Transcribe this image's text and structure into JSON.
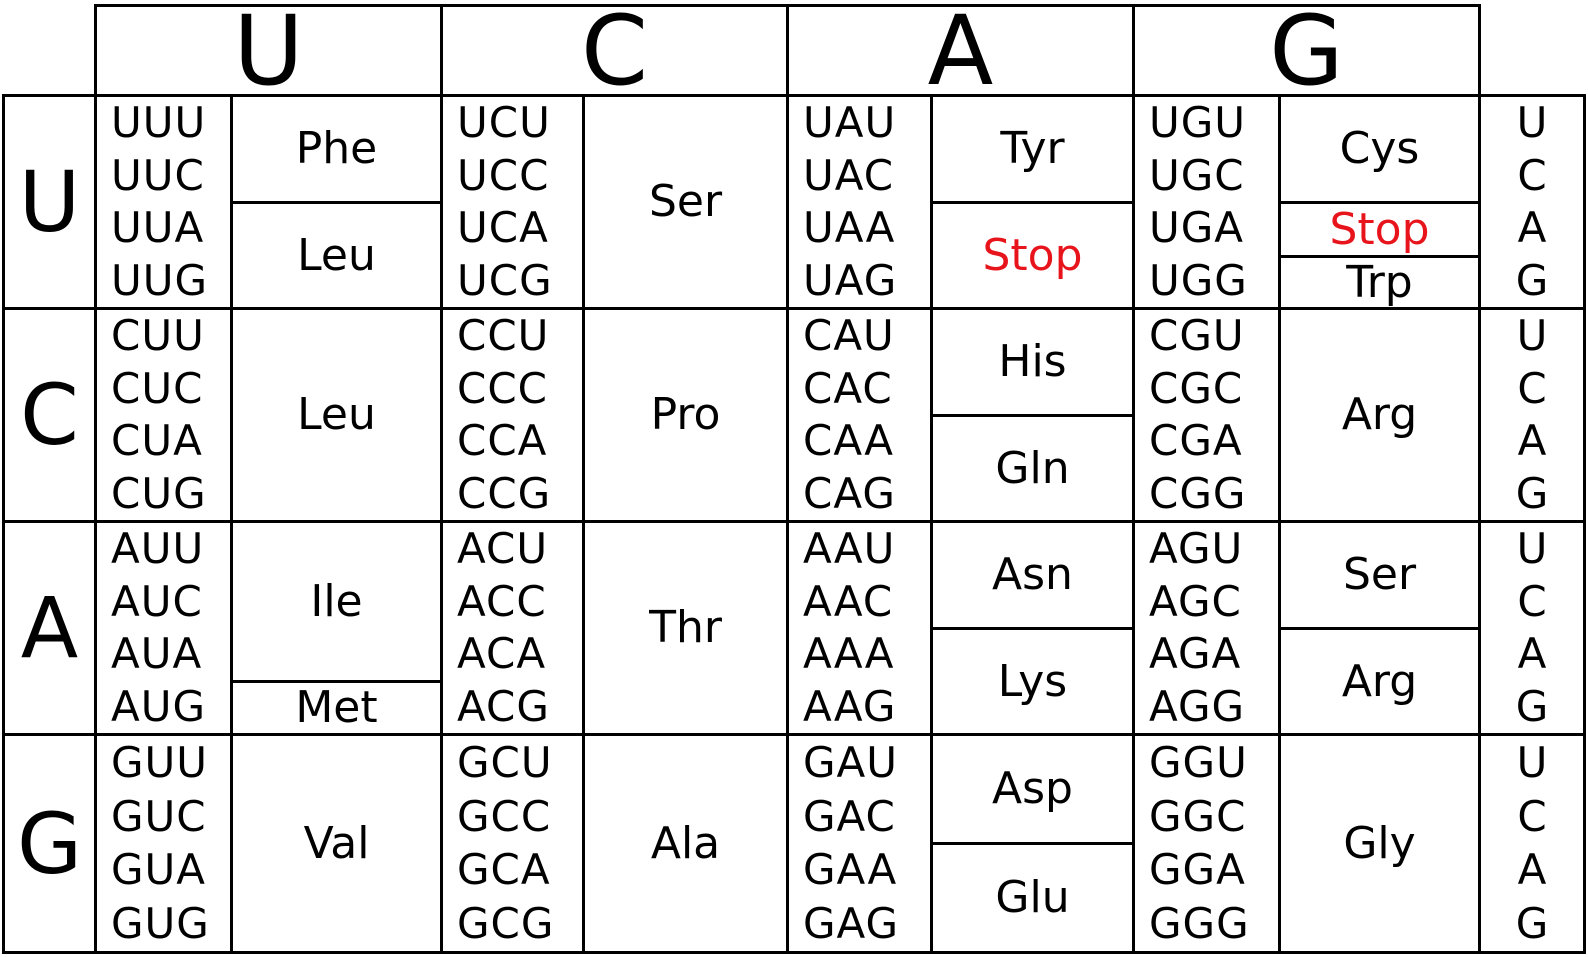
{
  "header": [
    "U",
    "C",
    "A",
    "G"
  ],
  "rows": [
    {
      "first": "U",
      "third": [
        "U",
        "C",
        "A",
        "G"
      ],
      "codons": [
        [
          "UUU",
          "UUC",
          "UUA",
          "UUG"
        ],
        [
          "UCU",
          "UCC",
          "UCA",
          "UCG"
        ],
        [
          "UAU",
          "UAC",
          "UAA",
          "UAG"
        ],
        [
          "UGU",
          "UGC",
          "UGA",
          "UGG"
        ]
      ],
      "amino": [
        [
          "Phe",
          "Leu"
        ],
        [
          "Ser"
        ],
        [
          "Tyr",
          "Stop"
        ],
        [
          "Cys",
          "Stop",
          "Trp"
        ]
      ]
    },
    {
      "first": "C",
      "third": [
        "U",
        "C",
        "A",
        "G"
      ],
      "codons": [
        [
          "CUU",
          "CUC",
          "CUA",
          "CUG"
        ],
        [
          "CCU",
          "CCC",
          "CCA",
          "CCG"
        ],
        [
          "CAU",
          "CAC",
          "CAA",
          "CAG"
        ],
        [
          "CGU",
          "CGC",
          "CGA",
          "CGG"
        ]
      ],
      "amino": [
        [
          "Leu"
        ],
        [
          "Pro"
        ],
        [
          "His",
          "Gln"
        ],
        [
          "Arg"
        ]
      ]
    },
    {
      "first": "A",
      "third": [
        "U",
        "C",
        "A",
        "G"
      ],
      "codons": [
        [
          "AUU",
          "AUC",
          "AUA",
          "AUG"
        ],
        [
          "ACU",
          "ACC",
          "ACA",
          "ACG"
        ],
        [
          "AAU",
          "AAC",
          "AAA",
          "AAG"
        ],
        [
          "AGU",
          "AGC",
          "AGA",
          "AGG"
        ]
      ],
      "amino": [
        [
          "Ile",
          "Met"
        ],
        [
          "Thr"
        ],
        [
          "Asn",
          "Lys"
        ],
        [
          "Ser",
          "Arg"
        ]
      ]
    },
    {
      "first": "G",
      "third": [
        "U",
        "C",
        "A",
        "G"
      ],
      "codons": [
        [
          "GUU",
          "GUC",
          "GUA",
          "GUG"
        ],
        [
          "GCU",
          "GCC",
          "GCA",
          "GCG"
        ],
        [
          "GAU",
          "GAC",
          "GAA",
          "GAG"
        ],
        [
          "GGU",
          "GGC",
          "GGA",
          "GGG"
        ]
      ],
      "amino": [
        [
          "Val"
        ],
        [
          "Ala"
        ],
        [
          "Asp",
          "Glu"
        ],
        [
          "Gly"
        ]
      ]
    }
  ],
  "colors": {
    "stop": "#e8141c",
    "line": "#000000"
  }
}
